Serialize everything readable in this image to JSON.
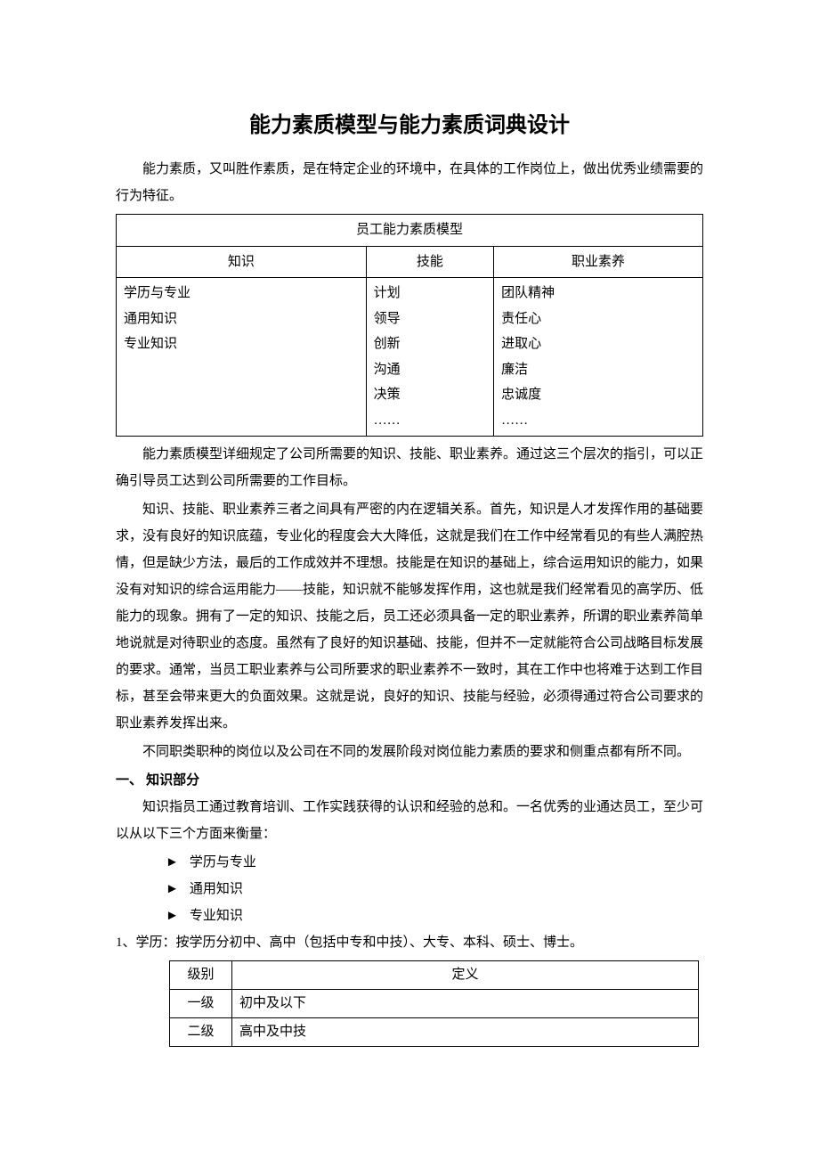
{
  "title": "能力素质模型与能力素质词典设计",
  "intro_paragraph": "能力素质，又叫胜作素质，是在特定企业的环境中，在具体的工作岗位上，做出优秀业绩需要的行为特征。",
  "model_table": {
    "caption": "员工能力素质模型",
    "headers": [
      "知识",
      "技能",
      "职业素养"
    ],
    "column1": [
      "学历与专业",
      "通用知识",
      "专业知识"
    ],
    "column2": [
      "计划",
      "领导",
      "创新",
      "沟通",
      "决策",
      "……"
    ],
    "column3": [
      "团队精神",
      "责任心",
      "进取心",
      "廉洁",
      "忠诚度",
      "……"
    ]
  },
  "para2": "能力素质模型详细规定了公司所需要的知识、技能、职业素养。通过这三个层次的指引，可以正确引导员工达到公司所需要的工作目标。",
  "para3": "知识、技能、职业素养三者之间具有严密的内在逻辑关系。首先，知识是人才发挥作用的基础要求，没有良好的知识底蕴，专业化的程度会大大降低，这就是我们在工作中经常看见的有些人满腔热情，但是缺少方法，最后的工作成效并不理想。技能是在知识的基础上，综合运用知识的能力，如果没有对知识的综合运用能力——技能，知识就不能够发挥作用，这也就是我们经常看见的高学历、低能力的现象。拥有了一定的知识、技能之后，员工还必须具备一定的职业素养，所谓的职业素养简单地说就是对待职业的态度。虽然有了良好的知识基础、技能，但并不一定就能符合公司战略目标发展的要求。通常，当员工职业素养与公司所要求的职业素养不一致时，其在工作中也将难于达到工作目标，甚至会带来更大的负面效果。这就是说，良好的知识、技能与经验，必须得通过符合公司要求的职业素养发挥出来。",
  "para4": "不同职类职种的岗位以及公司在不同的发展阶段对岗位能力素质的要求和侧重点都有所不同。",
  "section1_heading": "一、 知识部分",
  "section1_intro": "知识指员工通过教育培训、工作实践获得的认识和经验的总和。一名优秀的业通达员工，至少可以从以下三个方面来衡量：",
  "bullets": [
    "学历与专业",
    "通用知识",
    "专业知识"
  ],
  "item1_text": "1、学历：按学历分初中、高中（包括中专和中技）、大专、本科、硕士、博士。",
  "level_table": {
    "headers": [
      "级别",
      "定义"
    ],
    "rows": [
      [
        "一级",
        "初中及以下"
      ],
      [
        "二级",
        "高中及中技"
      ]
    ]
  }
}
